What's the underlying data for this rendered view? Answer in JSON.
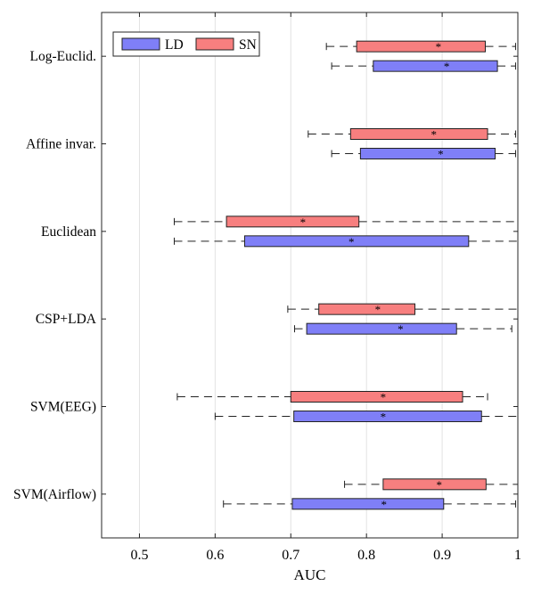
{
  "chart_data": {
    "type": "boxplot",
    "xlabel": "AUC",
    "ylabel": "",
    "title": "",
    "xlim": [
      0.45,
      1.0
    ],
    "xticks": [
      0.5,
      0.6,
      0.7,
      0.8,
      0.9,
      1.0
    ],
    "xtick_labels": [
      "0.5",
      "0.6",
      "0.7",
      "0.8",
      "0.9",
      "1"
    ],
    "grid": "vertical",
    "legend_position": "top-left",
    "categories": [
      "Log-Euclid.",
      "Affine invar.",
      "Euclidean",
      "CSP+LDA",
      "SVM(EEG)",
      "SVM(Airflow)"
    ],
    "series": [
      {
        "name": "SN",
        "color": "#f77f7f",
        "boxes": [
          {
            "whisker_low": 0.747,
            "q1": 0.787,
            "median": 0.895,
            "q3": 0.957,
            "whisker_high": 0.997
          },
          {
            "whisker_low": 0.723,
            "q1": 0.779,
            "median": 0.889,
            "q3": 0.96,
            "whisker_high": 0.997
          },
          {
            "whisker_low": 0.546,
            "q1": 0.615,
            "median": 0.716,
            "q3": 0.79,
            "whisker_high": 1.0
          },
          {
            "whisker_low": 0.696,
            "q1": 0.737,
            "median": 0.815,
            "q3": 0.864,
            "whisker_high": 1.0
          },
          {
            "whisker_low": 0.55,
            "q1": 0.7,
            "median": 0.822,
            "q3": 0.927,
            "whisker_high": 0.96
          },
          {
            "whisker_low": 0.771,
            "q1": 0.822,
            "median": 0.896,
            "q3": 0.958,
            "whisker_high": 1.0
          }
        ]
      },
      {
        "name": "LD",
        "color": "#7f7ff7",
        "boxes": [
          {
            "whisker_low": 0.754,
            "q1": 0.809,
            "median": 0.906,
            "q3": 0.973,
            "whisker_high": 0.997
          },
          {
            "whisker_low": 0.754,
            "q1": 0.792,
            "median": 0.898,
            "q3": 0.97,
            "whisker_high": 0.997
          },
          {
            "whisker_low": 0.546,
            "q1": 0.639,
            "median": 0.78,
            "q3": 0.935,
            "whisker_high": 1.0
          },
          {
            "whisker_low": 0.705,
            "q1": 0.721,
            "median": 0.845,
            "q3": 0.919,
            "whisker_high": 0.992
          },
          {
            "whisker_low": 0.6,
            "q1": 0.704,
            "median": 0.822,
            "q3": 0.952,
            "whisker_high": 1.0
          },
          {
            "whisker_low": 0.611,
            "q1": 0.702,
            "median": 0.823,
            "q3": 0.902,
            "whisker_high": 0.997
          }
        ]
      }
    ]
  }
}
